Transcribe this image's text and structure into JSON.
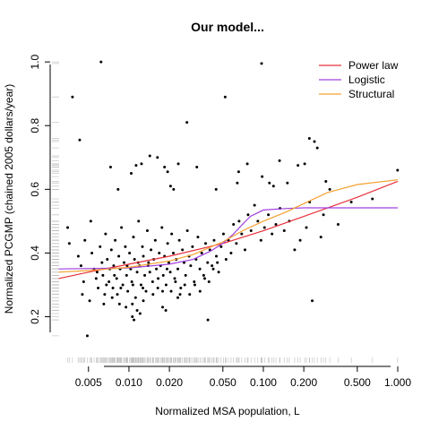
{
  "chart_data": {
    "type": "scatter",
    "title": "Our model...",
    "xlabel": "Normalized MSA population, L",
    "ylabel": "Normalized PCGMP (chained 2005 dollars/year)",
    "x_scale": "log",
    "xlim": [
      0.0028,
      1.0
    ],
    "ylim": [
      0.12,
      1.02
    ],
    "x_ticks": [
      0.005,
      0.01,
      0.02,
      0.05,
      0.1,
      0.2,
      0.5,
      1.0
    ],
    "x_tick_labels": [
      "0.005",
      "0.010",
      "0.020",
      "0.050",
      "0.100",
      "0.200",
      "0.500",
      "1.000"
    ],
    "y_ticks": [
      0.2,
      0.4,
      0.6,
      0.8,
      1.0
    ],
    "y_tick_labels": [
      "0.2",
      "0.4",
      "0.6",
      "0.8",
      "1.0"
    ],
    "grid": false,
    "legend_position": "top-right",
    "rug": true,
    "series": [
      {
        "name": "Power law",
        "type": "line",
        "color": "#e8303a",
        "x": [
          0.003,
          0.005,
          0.01,
          0.02,
          0.05,
          0.1,
          0.2,
          0.5,
          1.0
        ],
        "y": [
          0.32,
          0.34,
          0.365,
          0.39,
          0.43,
          0.47,
          0.515,
          0.575,
          0.625
        ]
      },
      {
        "name": "Logistic",
        "type": "line",
        "color": "#a040e0",
        "x": [
          0.003,
          0.01,
          0.02,
          0.03,
          0.04,
          0.05,
          0.06,
          0.07,
          0.08,
          0.1,
          0.15,
          0.2,
          0.5,
          1.0
        ],
        "y": [
          0.35,
          0.353,
          0.365,
          0.38,
          0.405,
          0.43,
          0.46,
          0.49,
          0.515,
          0.535,
          0.54,
          0.542,
          0.542,
          0.542
        ]
      },
      {
        "name": "Structural",
        "type": "line",
        "color": "#f5a030",
        "x": [
          0.003,
          0.005,
          0.01,
          0.02,
          0.03,
          0.05,
          0.07,
          0.1,
          0.15,
          0.2,
          0.3,
          0.5,
          1.0
        ],
        "y": [
          0.34,
          0.345,
          0.355,
          0.375,
          0.395,
          0.435,
          0.47,
          0.5,
          0.53,
          0.555,
          0.59,
          0.615,
          0.63
        ]
      }
    ],
    "points": [
      [
        0.0062,
        1.0
      ],
      [
        0.0038,
        0.89
      ],
      [
        0.0043,
        0.755
      ],
      [
        0.097,
        0.995
      ],
      [
        0.052,
        0.89
      ],
      [
        0.027,
        0.81
      ],
      [
        0.22,
        0.76
      ],
      [
        0.24,
        0.75
      ],
      [
        0.0073,
        0.67
      ],
      [
        0.0083,
        0.6
      ],
      [
        0.0104,
        0.65
      ],
      [
        0.0113,
        0.675
      ],
      [
        0.0124,
        0.68
      ],
      [
        0.0143,
        0.705
      ],
      [
        0.0163,
        0.7
      ],
      [
        0.0184,
        0.67
      ],
      [
        0.0194,
        0.655
      ],
      [
        0.0204,
        0.61
      ],
      [
        0.0215,
        0.6
      ],
      [
        0.0233,
        0.68
      ],
      [
        0.032,
        0.67
      ],
      [
        0.0445,
        0.6
      ],
      [
        0.0655,
        0.655
      ],
      [
        0.064,
        0.62
      ],
      [
        0.076,
        0.68
      ],
      [
        0.098,
        0.64
      ],
      [
        0.111,
        0.62
      ],
      [
        0.119,
        0.61
      ],
      [
        0.132,
        0.69
      ],
      [
        0.151,
        0.62
      ],
      [
        0.181,
        0.675
      ],
      [
        0.203,
        0.68
      ],
      [
        0.221,
        0.56
      ],
      [
        0.252,
        0.73
      ],
      [
        0.292,
        0.625
      ],
      [
        0.312,
        0.6
      ],
      [
        0.451,
        0.56
      ],
      [
        0.648,
        0.57
      ],
      [
        0.997,
        0.66
      ],
      [
        0.0035,
        0.48
      ],
      [
        0.0036,
        0.43
      ],
      [
        0.0042,
        0.39
      ],
      [
        0.0044,
        0.36
      ],
      [
        0.0047,
        0.44
      ],
      [
        0.0052,
        0.5
      ],
      [
        0.0053,
        0.4
      ],
      [
        0.0055,
        0.35
      ],
      [
        0.0057,
        0.32
      ],
      [
        0.0059,
        0.29
      ],
      [
        0.0061,
        0.42
      ],
      [
        0.0063,
        0.37
      ],
      [
        0.0064,
        0.33
      ],
      [
        0.0066,
        0.27
      ],
      [
        0.0067,
        0.46
      ],
      [
        0.0069,
        0.38
      ],
      [
        0.0071,
        0.31
      ],
      [
        0.0072,
        0.35
      ],
      [
        0.0074,
        0.41
      ],
      [
        0.0076,
        0.29
      ],
      [
        0.0077,
        0.36
      ],
      [
        0.0079,
        0.44
      ],
      [
        0.0081,
        0.32
      ],
      [
        0.0082,
        0.27
      ],
      [
        0.0084,
        0.39
      ],
      [
        0.0086,
        0.35
      ],
      [
        0.0088,
        0.48
      ],
      [
        0.009,
        0.3
      ],
      [
        0.0092,
        0.37
      ],
      [
        0.0094,
        0.42
      ],
      [
        0.0096,
        0.33
      ],
      [
        0.0098,
        0.28
      ],
      [
        0.0101,
        0.4
      ],
      [
        0.0103,
        0.35
      ],
      [
        0.0105,
        0.31
      ],
      [
        0.0108,
        0.45
      ],
      [
        0.011,
        0.38
      ],
      [
        0.0112,
        0.26
      ],
      [
        0.0115,
        0.34
      ],
      [
        0.0118,
        0.5
      ],
      [
        0.012,
        0.36
      ],
      [
        0.0123,
        0.3
      ],
      [
        0.0126,
        0.42
      ],
      [
        0.0128,
        0.39
      ],
      [
        0.0131,
        0.33
      ],
      [
        0.0134,
        0.28
      ],
      [
        0.0137,
        0.47
      ],
      [
        0.014,
        0.37
      ],
      [
        0.0143,
        0.34
      ],
      [
        0.0146,
        0.41
      ],
      [
        0.015,
        0.31
      ],
      [
        0.0153,
        0.38
      ],
      [
        0.0157,
        0.44
      ],
      [
        0.016,
        0.35
      ],
      [
        0.0164,
        0.29
      ],
      [
        0.0168,
        0.4
      ],
      [
        0.0172,
        0.36
      ],
      [
        0.0176,
        0.48
      ],
      [
        0.018,
        0.33
      ],
      [
        0.0184,
        0.39
      ],
      [
        0.0189,
        0.3
      ],
      [
        0.0194,
        0.43
      ],
      [
        0.0198,
        0.37
      ],
      [
        0.0203,
        0.34
      ],
      [
        0.0208,
        0.46
      ],
      [
        0.0214,
        0.4
      ],
      [
        0.0219,
        0.32
      ],
      [
        0.0225,
        0.38
      ],
      [
        0.0231,
        0.35
      ],
      [
        0.0237,
        0.44
      ],
      [
        0.0243,
        0.29
      ],
      [
        0.025,
        0.41
      ],
      [
        0.0257,
        0.37
      ],
      [
        0.0264,
        0.33
      ],
      [
        0.0272,
        0.47
      ],
      [
        0.028,
        0.39
      ],
      [
        0.0288,
        0.36
      ],
      [
        0.0297,
        0.42
      ],
      [
        0.0306,
        0.31
      ],
      [
        0.0316,
        0.38
      ],
      [
        0.0326,
        0.45
      ],
      [
        0.0337,
        0.35
      ],
      [
        0.0348,
        0.4
      ],
      [
        0.036,
        0.33
      ],
      [
        0.0372,
        0.43
      ],
      [
        0.0385,
        0.37
      ],
      [
        0.04,
        0.41
      ],
      [
        0.0415,
        0.36
      ],
      [
        0.043,
        0.44
      ],
      [
        0.0447,
        0.39
      ],
      [
        0.0465,
        0.34
      ],
      [
        0.0485,
        0.42
      ],
      [
        0.0505,
        0.46
      ],
      [
        0.0528,
        0.38
      ],
      [
        0.055,
        0.44
      ],
      [
        0.0575,
        0.4
      ],
      [
        0.06,
        0.49
      ],
      [
        0.063,
        0.43
      ],
      [
        0.066,
        0.5
      ],
      [
        0.069,
        0.46
      ],
      [
        0.073,
        0.41
      ],
      [
        0.077,
        0.52
      ],
      [
        0.081,
        0.47
      ],
      [
        0.086,
        0.55
      ],
      [
        0.091,
        0.5
      ],
      [
        0.096,
        0.44
      ],
      [
        0.102,
        0.48
      ],
      [
        0.109,
        0.52
      ],
      [
        0.116,
        0.46
      ],
      [
        0.124,
        0.49
      ],
      [
        0.133,
        0.54
      ],
      [
        0.143,
        0.47
      ],
      [
        0.156,
        0.5
      ],
      [
        0.171,
        0.41
      ],
      [
        0.188,
        0.44
      ],
      [
        0.209,
        0.48
      ],
      [
        0.231,
        0.25
      ],
      [
        0.268,
        0.45
      ],
      [
        0.28,
        0.52
      ],
      [
        0.36,
        0.49
      ],
      [
        0.0046,
        0.31
      ],
      [
        0.0058,
        0.34
      ],
      [
        0.0068,
        0.3
      ],
      [
        0.0078,
        0.33
      ],
      [
        0.0087,
        0.29
      ],
      [
        0.0097,
        0.36
      ],
      [
        0.0107,
        0.3
      ],
      [
        0.0117,
        0.37
      ],
      [
        0.0127,
        0.29
      ],
      [
        0.0139,
        0.36
      ],
      [
        0.0151,
        0.27
      ],
      [
        0.0165,
        0.32
      ],
      [
        0.0178,
        0.28
      ],
      [
        0.0192,
        0.35
      ],
      [
        0.0206,
        0.28
      ],
      [
        0.0222,
        0.31
      ],
      [
        0.024,
        0.27
      ],
      [
        0.026,
        0.3
      ],
      [
        0.0283,
        0.27
      ],
      [
        0.0309,
        0.3
      ],
      [
        0.0338,
        0.28
      ],
      [
        0.0366,
        0.32
      ],
      [
        0.0394,
        0.31
      ],
      [
        0.0424,
        0.35
      ],
      [
        0.0455,
        0.37
      ],
      [
        0.0106,
        0.2
      ],
      [
        0.0128,
        0.25
      ],
      [
        0.0109,
        0.19
      ],
      [
        0.0121,
        0.21
      ],
      [
        0.0178,
        0.23
      ],
      [
        0.0231,
        0.26
      ],
      [
        0.0188,
        0.22
      ],
      [
        0.0387,
        0.19
      ],
      [
        0.0045,
        0.27
      ],
      [
        0.0051,
        0.25
      ],
      [
        0.0065,
        0.24
      ],
      [
        0.0075,
        0.26
      ],
      [
        0.0085,
        0.24
      ],
      [
        0.0095,
        0.23
      ],
      [
        0.0106,
        0.24
      ],
      [
        0.0115,
        0.22
      ],
      [
        0.0049,
        0.14
      ]
    ]
  }
}
